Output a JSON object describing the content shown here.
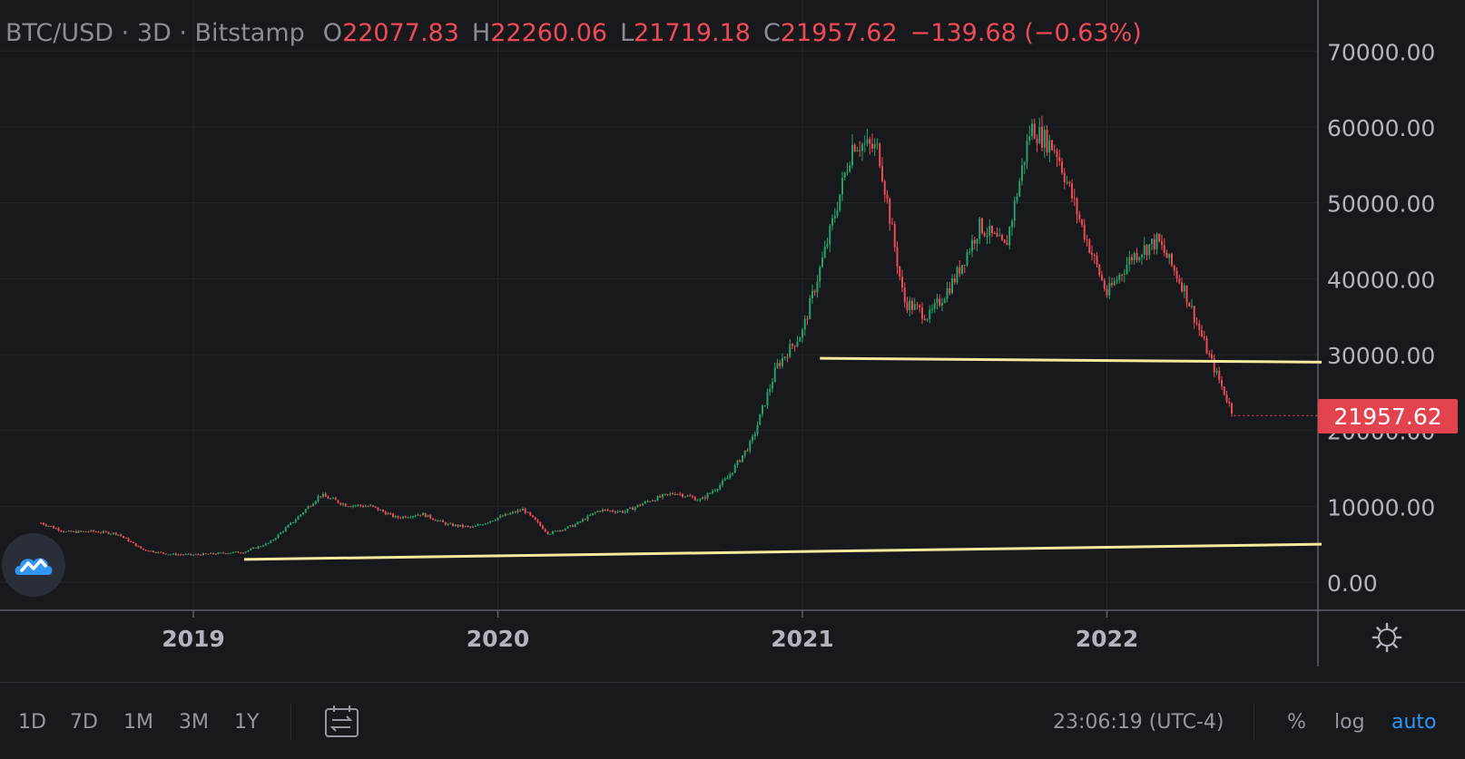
{
  "legend": {
    "symbol": "BTC/USD · 3D · Bitstamp",
    "open_label": "O",
    "open": "22077.83",
    "high_label": "H",
    "high": "22260.06",
    "low_label": "L",
    "low": "21719.18",
    "close_label": "C",
    "close": "21957.62",
    "change": "−139.68 (−0.63%)"
  },
  "price_tag": "21957.62",
  "footer": {
    "ranges": [
      "1D",
      "7D",
      "1M",
      "3M",
      "1Y"
    ],
    "time": "23:06:19 (UTC-4)",
    "scale": [
      "%",
      "log",
      "auto"
    ]
  },
  "colors": {
    "up": "#26a269",
    "down": "#ef4a56",
    "line": "#f5eb9e",
    "accent": "#2f96f3"
  },
  "chart_data": {
    "type": "candlestick",
    "title": "",
    "series": [
      {
        "name": "BTC/USD · 3D · Bitstamp"
      }
    ],
    "x": [
      "2018-07",
      "2018-08",
      "2018-09",
      "2018-10",
      "2018-11",
      "2018-12",
      "2019-01",
      "2019-02",
      "2019-03",
      "2019-04",
      "2019-05",
      "2019-06",
      "2019-07",
      "2019-08",
      "2019-09",
      "2019-10",
      "2019-11",
      "2019-12",
      "2020-01",
      "2020-02",
      "2020-03",
      "2020-04",
      "2020-05",
      "2020-06",
      "2020-07",
      "2020-08",
      "2020-09",
      "2020-10",
      "2020-11",
      "2020-12",
      "2021-01",
      "2021-02",
      "2021-03",
      "2021-04",
      "2021-05",
      "2021-06",
      "2021-07",
      "2021-08",
      "2021-09",
      "2021-10",
      "2021-11",
      "2021-12",
      "2022-01",
      "2022-02",
      "2022-03",
      "2022-04",
      "2022-05",
      "2022-06"
    ],
    "y": [
      7800,
      6600,
      6700,
      6400,
      4300,
      3700,
      3600,
      3800,
      4000,
      5200,
      8200,
      11500,
      10200,
      10000,
      8500,
      9000,
      7600,
      7200,
      8500,
      9600,
      6400,
      7500,
      9500,
      9300,
      10800,
      11800,
      10800,
      13500,
      18500,
      28500,
      33000,
      45000,
      58000,
      57000,
      37000,
      35000,
      40000,
      47000,
      44000,
      60000,
      57000,
      47000,
      38000,
      43000,
      45000,
      39000,
      30000,
      21957.62
    ],
    "x_ticks": [
      "2019",
      "2020",
      "2021",
      "2022"
    ],
    "y_ticks": [
      "0.00",
      "10000.00",
      "20000.00",
      "30000.00",
      "40000.00",
      "50000.00",
      "60000.00",
      "70000.00"
    ],
    "ylim": [
      -1500,
      73000
    ],
    "annotations": [
      {
        "type": "trendline",
        "from": [
          "2019-03-01",
          3000
        ],
        "to": [
          "2022-09-15",
          5000
        ]
      },
      {
        "type": "trendline",
        "from": [
          "2021-01-22",
          29500
        ],
        "to": [
          "2022-09-15",
          29000
        ]
      }
    ],
    "grid": true
  }
}
